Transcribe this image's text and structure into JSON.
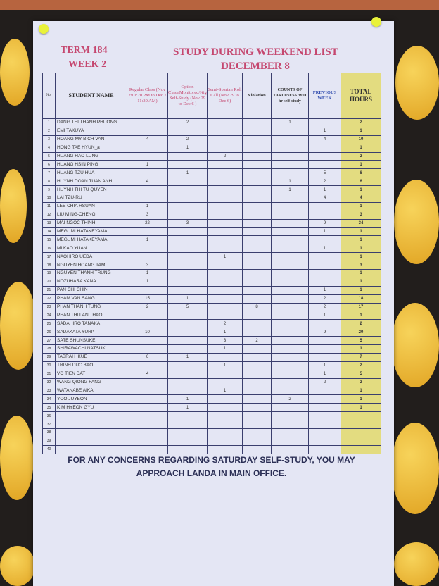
{
  "header": {
    "term": "TERM 184",
    "week": "WEEK 2",
    "title": "STUDY DURING WEEKEND LIST",
    "date": "DECEMBER 8"
  },
  "table": {
    "columns": [
      "No.",
      "STUDENT NAME",
      "Regular Class (Nov 29 1:20 PM to Dec 7 11:30 AM)",
      "Option Class/Monitored/Night Self-Study (Nov 29 to Dec 6 )",
      "Semi-Spartan Roll Call (Nov 29 to Dec 6)",
      "Violation",
      "COUNTS OF TARDINESS 3x=1 hr self-study",
      "PREVIOUS WEEK",
      "TOTAL HOURS"
    ],
    "rows": [
      [
        "1",
        "DANG THI THANH PHUONG",
        "",
        "2",
        "",
        "",
        "1",
        "",
        "2"
      ],
      [
        "2",
        "EMI TAKUYA",
        "",
        "",
        "",
        "",
        "",
        "1",
        "1"
      ],
      [
        "3",
        "HOANG MY BICH VAN",
        "4",
        "2",
        "",
        "",
        "",
        "4",
        "10"
      ],
      [
        "4",
        "HONG TAE HYUN_a",
        "",
        "1",
        "",
        "",
        "",
        "",
        "1"
      ],
      [
        "5",
        "HUANG HAO LUNG",
        "",
        "",
        "2",
        "",
        "",
        "",
        "2"
      ],
      [
        "6",
        "HUANG HSIN PING",
        "1",
        "",
        "",
        "",
        "",
        "",
        "1"
      ],
      [
        "7",
        "HUANG TZU HUA",
        "",
        "1",
        "",
        "",
        "",
        "5",
        "6"
      ],
      [
        "8",
        "HUYNH DOAN TUAN ANH",
        "4",
        "",
        "",
        "",
        "1",
        "2",
        "6"
      ],
      [
        "9",
        "HUYNH THI TU QUYEN",
        "",
        "",
        "",
        "",
        "1",
        "1",
        "1"
      ],
      [
        "10",
        "LAI TZU-RU",
        "",
        "",
        "",
        "",
        "",
        "4",
        "4"
      ],
      [
        "11",
        "LEE CHIA HSUAN",
        "1",
        "",
        "",
        "",
        "",
        "",
        "1"
      ],
      [
        "12",
        "LIU MING-CHENG",
        "3",
        "",
        "",
        "",
        "",
        "",
        "3"
      ],
      [
        "13",
        "MAI NGOC THINH",
        "22",
        "3",
        "",
        "",
        "",
        "9",
        "34"
      ],
      [
        "14",
        "MEGUMI HATAKEYAMA",
        "",
        "",
        "",
        "",
        "",
        "1",
        "1"
      ],
      [
        "15",
        "MEGUMI HATAKEYAMA",
        "1",
        "",
        "",
        "",
        "",
        "",
        "1"
      ],
      [
        "16",
        "MI KAO YUAN",
        "",
        "",
        "",
        "",
        "",
        "1",
        "1"
      ],
      [
        "17",
        "NAOHIRO UEDA",
        "",
        "",
        "1",
        "",
        "",
        "",
        "1"
      ],
      [
        "18",
        "NGUYEN HOANG TAM",
        "3",
        "",
        "",
        "",
        "",
        "",
        "3"
      ],
      [
        "19",
        "NGUYEN THANH TRUNG",
        "1",
        "",
        "",
        "",
        "",
        "",
        "1"
      ],
      [
        "20",
        "NOZUHARA KANA",
        "1",
        "",
        "",
        "",
        "",
        "",
        "1"
      ],
      [
        "21",
        "PAN CHI CHIN",
        "",
        "",
        "",
        "",
        "",
        "1",
        "1"
      ],
      [
        "22",
        "PHAM VAN SANG",
        "15",
        "1",
        "",
        "",
        "",
        "2",
        "18"
      ],
      [
        "23",
        "PHAN THANH TUNG",
        "2",
        "5",
        "",
        "8",
        "",
        "2",
        "17"
      ],
      [
        "24",
        "PHAN THI LAN THAO",
        "",
        "",
        "",
        "",
        "",
        "1",
        "1"
      ],
      [
        "25",
        "SADAHIRO TANAKA",
        "",
        "",
        "2",
        "",
        "",
        "",
        "2"
      ],
      [
        "26",
        "SADAKATA YURI*",
        "10",
        "",
        "1",
        "",
        "",
        "9",
        "20"
      ],
      [
        "27",
        "SATE SHUNSUKE",
        "",
        "",
        "3",
        "2",
        "",
        "",
        "5"
      ],
      [
        "28",
        "SHIRAWACHI NATSUKI",
        "",
        "",
        "1",
        "",
        "",
        "",
        "1"
      ],
      [
        "29",
        "TABRAH IKUE",
        "6",
        "1",
        "",
        "",
        "",
        "",
        "7"
      ],
      [
        "30",
        "TRINH DUC BAO",
        "",
        "",
        "1",
        "",
        "",
        "1",
        "2"
      ],
      [
        "31",
        "VO TIEN DAT",
        "4",
        "",
        "",
        "",
        "",
        "1",
        "5"
      ],
      [
        "32",
        "WANG QIONG FANG",
        "",
        "",
        "",
        "",
        "",
        "2",
        "2"
      ],
      [
        "33",
        "WATANABE AIKA",
        "",
        "",
        "1",
        "",
        "",
        "",
        "1"
      ],
      [
        "34",
        "YOO JUYEON",
        "",
        "1",
        "",
        "",
        "2",
        "",
        "1"
      ],
      [
        "35",
        "KIM HYEON GYU",
        "",
        "1",
        "",
        "",
        "",
        "",
        "1"
      ],
      [
        "36",
        "",
        "",
        "",
        "",
        "",
        "",
        "",
        ""
      ],
      [
        "37",
        "",
        "",
        "",
        "",
        "",
        "",
        "",
        ""
      ],
      [
        "38",
        "",
        "",
        "",
        "",
        "",
        "",
        "",
        ""
      ],
      [
        "39",
        "",
        "",
        "",
        "",
        "",
        "",
        "",
        ""
      ],
      [
        "40",
        "",
        "",
        "",
        "",
        "",
        "",
        "",
        ""
      ]
    ]
  },
  "footer": {
    "line1": "FOR ANY CONCERNS REGARDING SATURDAY SELF-STUDY, YOU MAY",
    "line2": "APPROACH LANDA IN MAIN OFFICE."
  },
  "colors": {
    "title": "#c5476f",
    "total_column": "#e3dc80",
    "paper": "#e4e6f4",
    "pushpin": "#e9f23a"
  }
}
